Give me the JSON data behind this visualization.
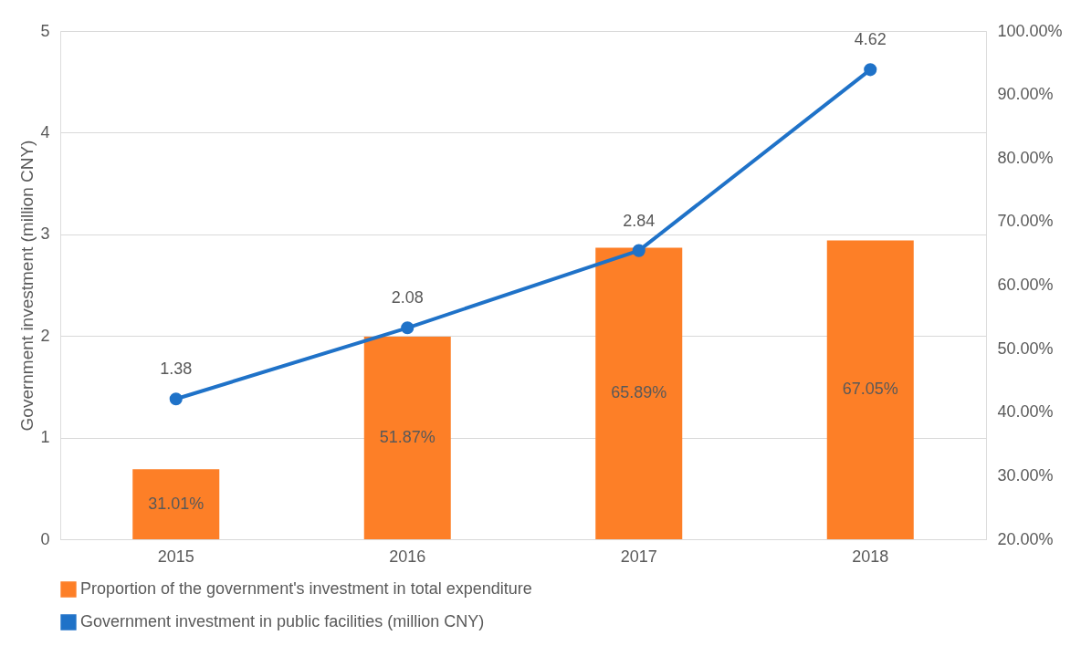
{
  "chart_data": {
    "type": "bar",
    "ylabel": "Government investment (million CNY)",
    "categories": [
      "2015",
      "2016",
      "2017",
      "2018"
    ],
    "series": [
      {
        "name": "Proportion of the government's investment in total expenditure",
        "axis": "y2",
        "color": "#fd7f27",
        "values": [
          31.01,
          51.87,
          65.89,
          67.05
        ],
        "value_labels": [
          "31.01%",
          "51.87%",
          "65.89%",
          "67.05%"
        ]
      },
      {
        "name": "Government investment in public facilities (million CNY)",
        "type": "line",
        "color": "#1f72c8",
        "values": [
          1.38,
          2.08,
          2.84,
          4.62
        ]
      }
    ],
    "ylim": [
      0,
      5
    ],
    "yticks": [
      0,
      1,
      2,
      3,
      4,
      5
    ],
    "y2lim": [
      20,
      100
    ],
    "y2ticks": [
      {
        "value": 20,
        "label": "20.00%"
      },
      {
        "value": 30,
        "label": "30.00%"
      },
      {
        "value": 40,
        "label": "40.00%"
      },
      {
        "value": 50,
        "label": "50.00%"
      },
      {
        "value": 60,
        "label": "60.00%"
      },
      {
        "value": 70,
        "label": "70.00%"
      },
      {
        "value": 80,
        "label": "80.00%"
      },
      {
        "value": 90,
        "label": "90.00%"
      },
      {
        "value": 100,
        "label": "100.00%"
      }
    ],
    "data_labels": true,
    "grid": "y",
    "legend": "bottom",
    "marker": "circle"
  }
}
